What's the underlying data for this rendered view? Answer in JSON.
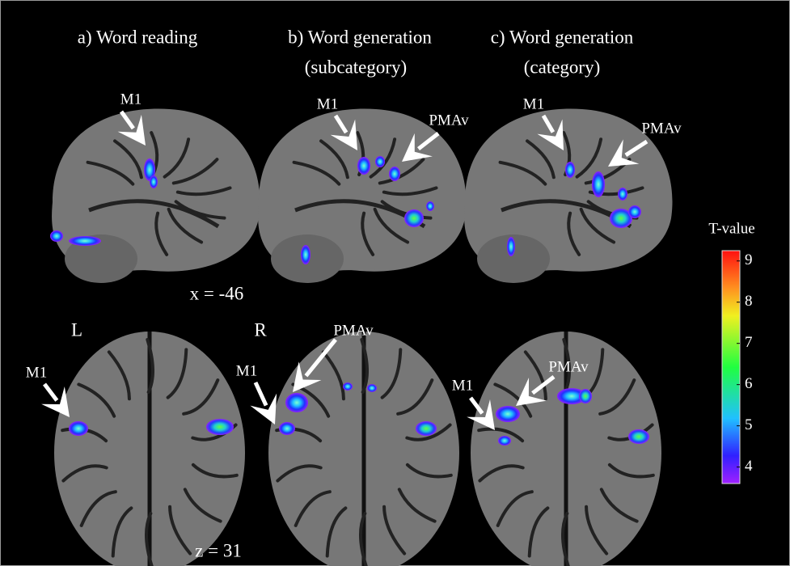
{
  "titles": [
    [
      "a) Word reading"
    ],
    [
      "b) Word generation",
      "(subcategory)"
    ],
    [
      "c) Word generation",
      "(category)"
    ]
  ],
  "sagittal_labels": [
    "M1",
    "M1",
    "PMAv",
    "M1",
    "PMAv"
  ],
  "axial_labels": [
    "M1",
    "M1",
    "PMAv",
    "M1",
    "PMAv"
  ],
  "slice_labels": {
    "sagittal": "x = -46",
    "axial": "z = 31"
  },
  "hemispheres": {
    "left": "L",
    "right": "R"
  },
  "colorbar": {
    "label": "T-value",
    "lim": [
      3.6,
      9.25
    ],
    "ticks": [
      4,
      5,
      6,
      7,
      8,
      9
    ]
  }
}
